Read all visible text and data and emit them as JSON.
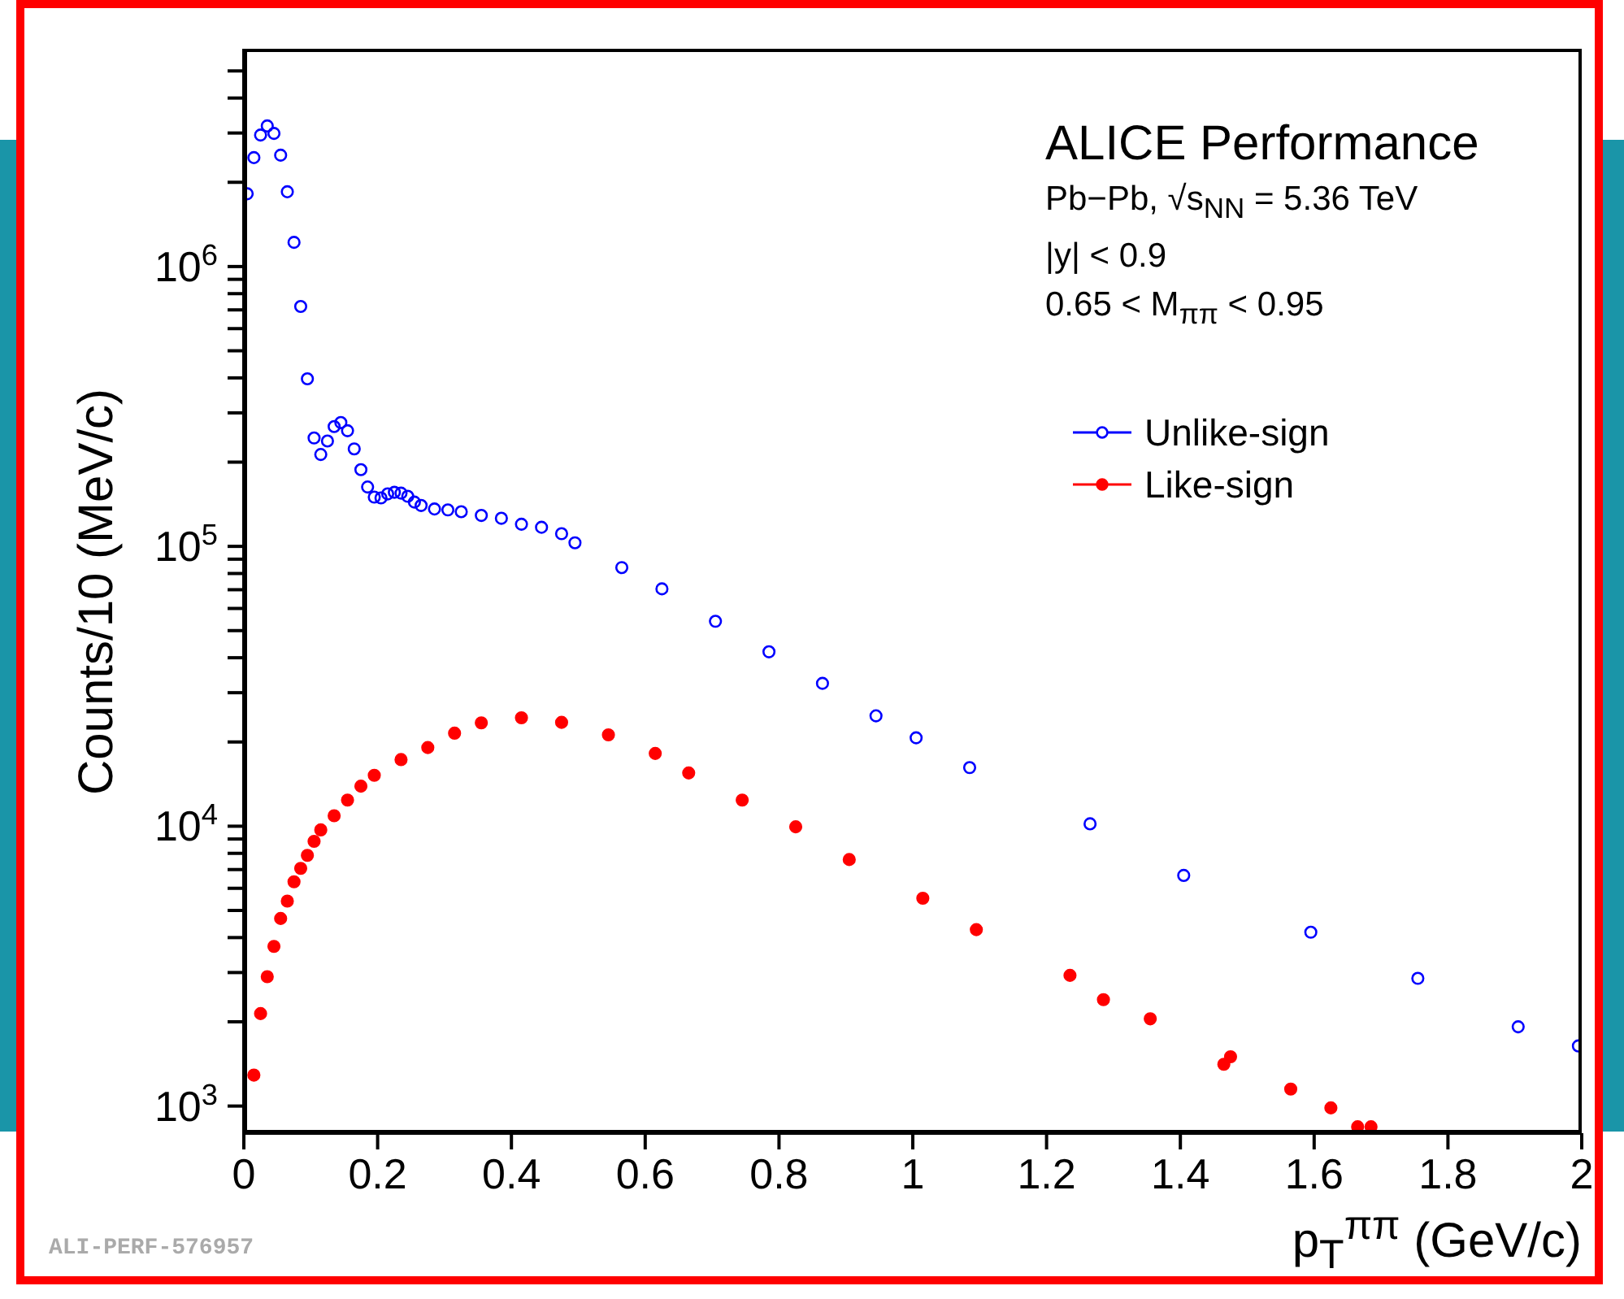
{
  "chart_data": {
    "type": "scatter",
    "xlabel": "p$_{T}$$^{ππ}$ (GeV/c)",
    "ylabel": "Counts/10 (MeV/c)",
    "annotations": [
      "ALICE Performance",
      "Pb−Pb, √s$_{NN}$ = 5.36 TeV",
      "|y| < 0.9",
      "0.65 < M$_{ππ}$ < 0.95",
      "ALI-PERF-576957"
    ],
    "log": "y",
    "xlim": [
      0,
      2
    ],
    "xticks": [
      0,
      0.2,
      0.4,
      0.6,
      0.8,
      1,
      1.2,
      1.4,
      1.6,
      1.8,
      2
    ],
    "ylim": [
      800,
      6000000
    ],
    "yticks": [
      {
        "value": 1000,
        "label": "10$^{3}$"
      },
      {
        "value": 2000,
        "label": null
      },
      {
        "value": 3000,
        "label": null
      },
      {
        "value": 4000,
        "label": null
      },
      {
        "value": 5000,
        "label": null
      },
      {
        "value": 6000,
        "label": null
      },
      {
        "value": 7000,
        "label": null
      },
      {
        "value": 8000,
        "label": null
      },
      {
        "value": 9000,
        "label": null
      },
      {
        "value": 10000,
        "label": "10$^{4}$"
      },
      {
        "value": 20000,
        "label": null
      },
      {
        "value": 30000,
        "label": null
      },
      {
        "value": 40000,
        "label": null
      },
      {
        "value": 50000,
        "label": null
      },
      {
        "value": 60000,
        "label": null
      },
      {
        "value": 70000,
        "label": null
      },
      {
        "value": 80000,
        "label": null
      },
      {
        "value": 90000,
        "label": null
      },
      {
        "value": 100000,
        "label": "10$^{5}$"
      },
      {
        "value": 200000,
        "label": null
      },
      {
        "value": 300000,
        "label": null
      },
      {
        "value": 400000,
        "label": null
      },
      {
        "value": 500000,
        "label": null
      },
      {
        "value": 600000,
        "label": null
      },
      {
        "value": 700000,
        "label": null
      },
      {
        "value": 800000,
        "label": null
      },
      {
        "value": 900000,
        "label": null
      },
      {
        "value": 1000000,
        "label": "10$^{6}$"
      },
      {
        "value": 2000000,
        "label": null
      },
      {
        "value": 3000000,
        "label": null
      },
      {
        "value": 4000000,
        "label": null
      },
      {
        "value": 5000000,
        "label": null
      }
    ],
    "grid": false,
    "legend": "top right",
    "marker": "circle",
    "series": [
      {
        "name": "Unlike-sign",
        "color": "#0000ff",
        "x": [
          0.005,
          0.015,
          0.025,
          0.035,
          0.045,
          0.055,
          0.065,
          0.075,
          0.085,
          0.095,
          0.105,
          0.115,
          0.125,
          0.135,
          0.145,
          0.155,
          0.165,
          0.175,
          0.185,
          0.195,
          0.205,
          0.215,
          0.225,
          0.235,
          0.245,
          0.255,
          0.265,
          0.285,
          0.305,
          0.325,
          0.355,
          0.385,
          0.415,
          0.445,
          0.475,
          0.495,
          0.565,
          0.625,
          0.705,
          0.785,
          0.865,
          0.945,
          1.005,
          1.085,
          1.265,
          1.405,
          1.595,
          1.755,
          1.905,
          1.995
        ],
        "values": [
          1820000,
          2450000,
          2950000,
          3180000,
          2990000,
          2500000,
          1850000,
          1220000,
          720000,
          397000,
          244000,
          213000,
          238000,
          268000,
          277000,
          259000,
          223000,
          188000,
          163000,
          150000,
          149000,
          154000,
          156000,
          155000,
          151000,
          144000,
          140000,
          136000,
          135000,
          133000,
          129000,
          126000,
          120000,
          117000,
          111000,
          103000,
          84000,
          70500,
          54000,
          42000,
          32400,
          24800,
          20700,
          16200,
          10200,
          6670,
          4180,
          2860,
          1920,
          1640
        ]
      },
      {
        "name": "Like-sign",
        "color": "#ff0000",
        "x": [
          0.015,
          0.025,
          0.035,
          0.045,
          0.055,
          0.065,
          0.075,
          0.085,
          0.095,
          0.105,
          0.115,
          0.135,
          0.155,
          0.175,
          0.195,
          0.235,
          0.275,
          0.315,
          0.355,
          0.415,
          0.475,
          0.545,
          0.615,
          0.665,
          0.745,
          0.825,
          0.905,
          1.015,
          1.095,
          1.235,
          1.285,
          1.355,
          1.465,
          1.475,
          1.565,
          1.625,
          1.665,
          1.685
        ],
        "values": [
          1290,
          2140,
          2900,
          3720,
          4680,
          5400,
          6330,
          7070,
          7870,
          8830,
          9700,
          10900,
          12400,
          13900,
          15200,
          17300,
          19100,
          21500,
          23400,
          24400,
          23500,
          21200,
          18200,
          15500,
          12400,
          9950,
          7600,
          5530,
          4270,
          2930,
          2400,
          2050,
          1410,
          1500,
          1150,
          985,
          843,
          843
        ]
      }
    ]
  }
}
